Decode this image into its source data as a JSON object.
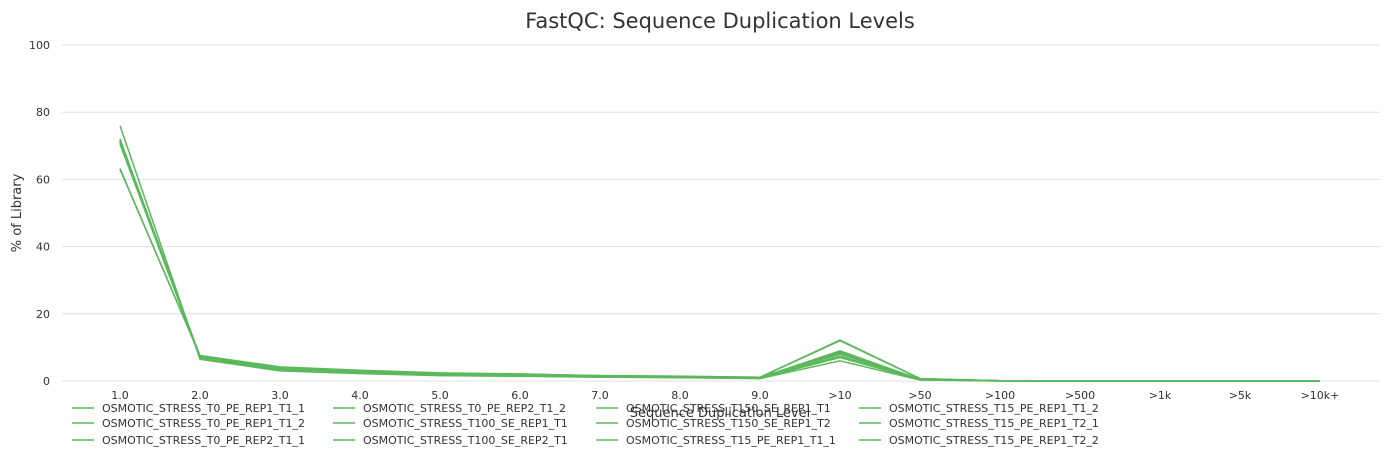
{
  "chart_data": {
    "type": "line",
    "title": "FastQC: Sequence Duplication Levels",
    "xlabel": "Sequence Duplication Level",
    "ylabel": "% of Library",
    "ylim": [
      0,
      100
    ],
    "yticks": [
      0,
      20,
      40,
      60,
      80,
      100
    ],
    "grid": true,
    "legend_position": "bottom",
    "series_color": "#5cb85c",
    "categories": [
      "1.0",
      "2.0",
      "3.0",
      "4.0",
      "5.0",
      "6.0",
      "7.0",
      "8.0",
      "9.0",
      ">10",
      ">50",
      ">100",
      ">500",
      ">1k",
      ">5k",
      ">10k+"
    ],
    "series": [
      {
        "name": "OSMOTIC_STRESS_T0_PE_REP1_T1_1",
        "values": [
          72.0,
          7.2,
          3.6,
          2.6,
          2.0,
          1.7,
          1.3,
          1.2,
          0.9,
          8.8,
          0.5,
          0.1,
          0.0,
          0.0,
          0.0,
          0.0
        ]
      },
      {
        "name": "OSMOTIC_STRESS_T0_PE_REP1_T1_2",
        "values": [
          71.5,
          7.1,
          3.5,
          2.5,
          1.9,
          1.7,
          1.3,
          1.2,
          0.9,
          8.6,
          0.5,
          0.1,
          0.0,
          0.0,
          0.0,
          0.0
        ]
      },
      {
        "name": "OSMOTIC_STRESS_T0_PE_REP2_T1_1",
        "values": [
          71.0,
          7.0,
          3.4,
          2.5,
          1.9,
          1.6,
          1.3,
          1.1,
          0.9,
          8.3,
          0.5,
          0.1,
          0.0,
          0.0,
          0.0,
          0.0
        ]
      },
      {
        "name": "OSMOTIC_STRESS_T0_PE_REP2_T1_2",
        "values": [
          70.5,
          7.0,
          3.4,
          2.4,
          1.8,
          1.6,
          1.2,
          1.1,
          0.9,
          8.0,
          0.5,
          0.1,
          0.0,
          0.0,
          0.0,
          0.0
        ]
      },
      {
        "name": "OSMOTIC_STRESS_T100_SE_REP1_T1",
        "values": [
          76.0,
          6.5,
          3.0,
          2.2,
          1.6,
          1.4,
          1.1,
          1.0,
          0.7,
          6.0,
          0.3,
          0.0,
          0.0,
          0.0,
          0.0,
          0.0
        ]
      },
      {
        "name": "OSMOTIC_STRESS_T100_SE_REP2_T1",
        "values": [
          72.0,
          6.8,
          3.2,
          2.3,
          1.7,
          1.5,
          1.2,
          1.0,
          0.8,
          7.0,
          0.4,
          0.0,
          0.0,
          0.0,
          0.0,
          0.0
        ]
      },
      {
        "name": "OSMOTIC_STRESS_T150_SE_REP1_T1",
        "values": [
          71.5,
          6.9,
          3.3,
          2.4,
          1.8,
          1.5,
          1.2,
          1.1,
          0.8,
          7.4,
          0.4,
          0.0,
          0.0,
          0.0,
          0.0,
          0.0
        ]
      },
      {
        "name": "OSMOTIC_STRESS_T150_SE_REP1_T2",
        "values": [
          71.0,
          7.1,
          3.5,
          2.5,
          1.9,
          1.6,
          1.3,
          1.1,
          0.9,
          8.2,
          0.5,
          0.1,
          0.0,
          0.0,
          0.0,
          0.0
        ]
      },
      {
        "name": "OSMOTIC_STRESS_T15_PE_REP1_T1_1",
        "values": [
          63.0,
          7.6,
          4.2,
          3.2,
          2.4,
          2.1,
          1.6,
          1.4,
          1.1,
          12.2,
          0.7,
          0.1,
          0.0,
          0.0,
          0.0,
          0.0
        ]
      },
      {
        "name": "OSMOTIC_STRESS_T15_PE_REP1_T1_2",
        "values": [
          63.2,
          7.5,
          4.1,
          3.1,
          2.3,
          2.0,
          1.6,
          1.4,
          1.1,
          12.0,
          0.7,
          0.1,
          0.0,
          0.0,
          0.0,
          0.0
        ]
      },
      {
        "name": "OSMOTIC_STRESS_T15_PE_REP1_T2_1",
        "values": [
          71.8,
          7.3,
          3.7,
          2.7,
          2.0,
          1.7,
          1.3,
          1.2,
          1.0,
          9.0,
          0.5,
          0.1,
          0.0,
          0.0,
          0.0,
          0.0
        ]
      },
      {
        "name": "OSMOTIC_STRESS_T15_PE_REP1_T2_2",
        "values": [
          71.3,
          7.2,
          3.6,
          2.6,
          2.0,
          1.7,
          1.3,
          1.2,
          0.9,
          8.7,
          0.5,
          0.1,
          0.0,
          0.0,
          0.0,
          0.0
        ]
      }
    ]
  }
}
